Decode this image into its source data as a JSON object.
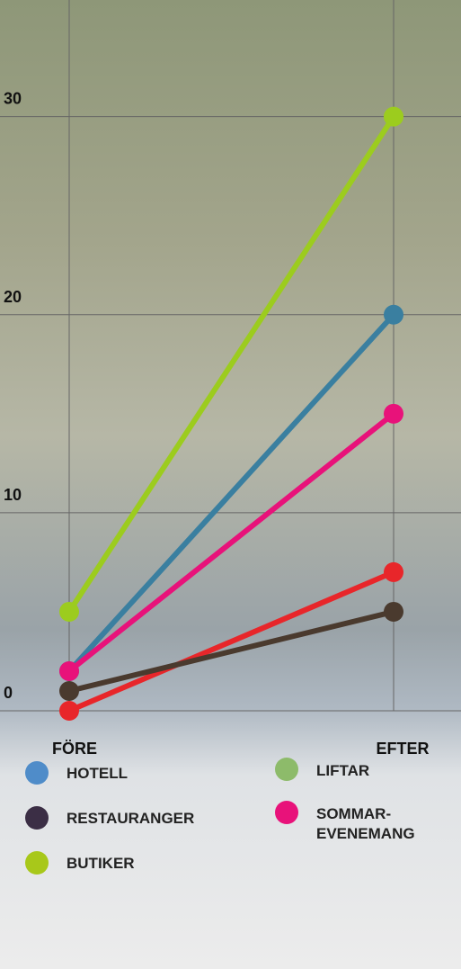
{
  "chart_data": {
    "type": "line",
    "categories": [
      "FÖRE",
      "EFTER"
    ],
    "series": [
      {
        "name": "HOTELL",
        "color": "#3a7fa0",
        "legend_color": "#4f8cc9",
        "values": [
          2,
          20
        ]
      },
      {
        "name": "RESTAURANGER",
        "color": "#4a3a2e",
        "legend_color": "#3b2e45",
        "values": [
          1,
          5
        ]
      },
      {
        "name": "BUTIKER",
        "color": "#9ccc1e",
        "legend_color": "#a8c81a",
        "values": [
          5,
          30
        ]
      },
      {
        "name": "LIFTAR",
        "color": "#e8262a",
        "legend_color": "#8dbb6a",
        "values": [
          0,
          7
        ]
      },
      {
        "name": "SOMMAR-EVENEMANG",
        "color": "#e8127a",
        "legend_color": "#e8127a",
        "values": [
          2,
          15
        ]
      }
    ],
    "ylim": [
      0,
      32.8
    ],
    "yticks": [
      0,
      10,
      20,
      30
    ],
    "grid": true
  }
}
